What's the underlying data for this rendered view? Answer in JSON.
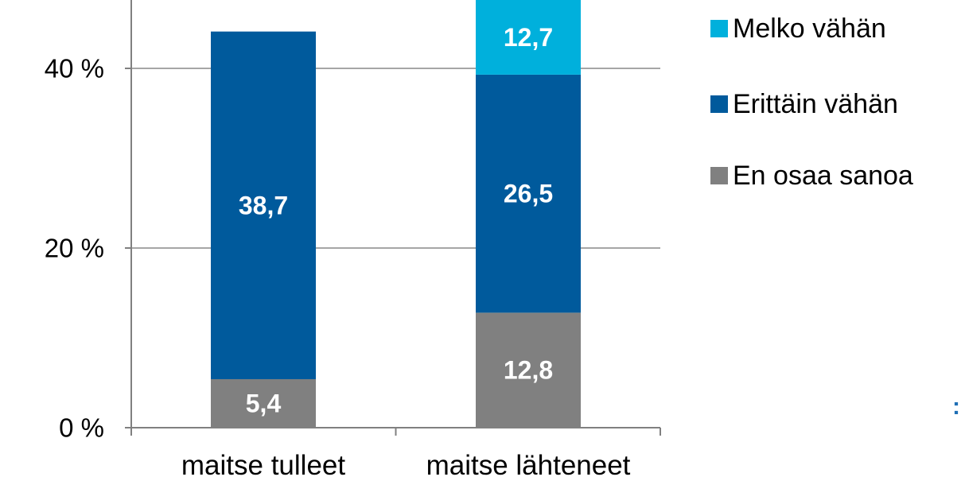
{
  "chart_data": {
    "type": "bar",
    "stacked": true,
    "categories": [
      "maitse tulleet",
      "maitse lähteneet"
    ],
    "series": [
      {
        "name": "En osaa sanoa",
        "values": [
          5.4,
          12.8
        ],
        "labels": [
          "5,4",
          "12,8"
        ],
        "color": "#808080"
      },
      {
        "name": "Erittäin vähän",
        "values": [
          38.7,
          26.5
        ],
        "labels": [
          "38,7",
          "26,5"
        ],
        "color": "#005A9C"
      },
      {
        "name": "Melko vähän",
        "values": [
          null,
          12.7
        ],
        "labels": [
          "",
          "12,7"
        ],
        "color": "#00B0DC"
      }
    ],
    "y_ticks": [
      {
        "value": 0,
        "label": "0 %"
      },
      {
        "value": 20,
        "label": "20 %"
      },
      {
        "value": 40,
        "label": "40 %"
      }
    ],
    "legend_order": [
      "Melko vähän",
      "Erittäin vähän",
      "En osaa sanoa"
    ],
    "legend_position": "right",
    "gridlines": true,
    "partial_top_value": 48,
    "gridline_color": "#A6A6A6",
    "axis_color": "#808080"
  }
}
